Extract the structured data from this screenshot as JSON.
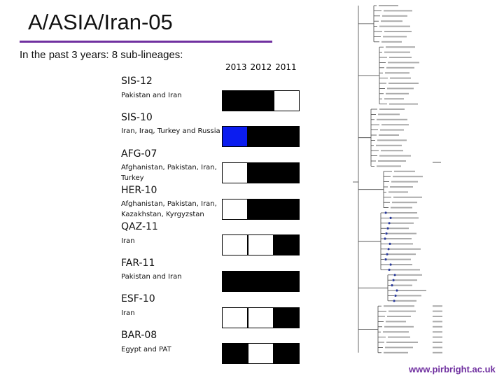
{
  "title": "A/ASIA/Iran-05",
  "subtitle": "In the past 3 years: 8 sub-lineages:",
  "years": [
    "2013",
    "2012",
    "2011"
  ],
  "colors": {
    "present": "#000000",
    "absent": "#ffffff",
    "highlight": "#0b1cf0",
    "accent": "#7030a0"
  },
  "lineages": [
    {
      "name": "SIS-12",
      "countries": "Pakistan and Iran",
      "cells": [
        "present",
        "present",
        "absent"
      ]
    },
    {
      "name": "SIS-10",
      "countries": "Iran, Iraq, Turkey and Russia",
      "cells": [
        "highlight",
        "present",
        "present"
      ]
    },
    {
      "name": "AFG-07",
      "countries": "Afghanistan, Pakistan, Iran, Turkey",
      "cells": [
        "absent",
        "present",
        "present"
      ]
    },
    {
      "name": "HER-10",
      "countries": "Afghanistan, Pakistan, Iran, Kazakhstan, Kyrgyzstan",
      "cells": [
        "absent",
        "present",
        "present"
      ]
    },
    {
      "name": "QAZ-11",
      "countries": "Iran",
      "cells": [
        "absent",
        "absent",
        "present"
      ]
    },
    {
      "name": "FAR-11",
      "countries": "Pakistan and Iran",
      "cells": [
        "present",
        "present",
        "present"
      ]
    },
    {
      "name": "ESF-10",
      "countries": "Iran",
      "cells": [
        "absent",
        "absent",
        "present"
      ]
    },
    {
      "name": "BAR-08",
      "countries": "Egypt and PAT",
      "cells": [
        "present",
        "absent",
        "present"
      ]
    }
  ],
  "footer": "www.pirbright.ac.uk"
}
